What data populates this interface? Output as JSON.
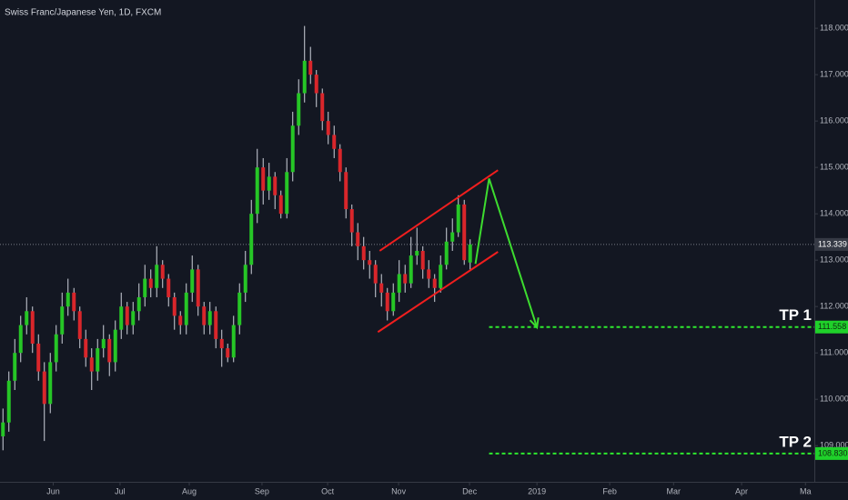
{
  "chart_data": {
    "type": "candlestick",
    "title": "Swiss Franc/Japanese Yen, 1D, FXCM",
    "up_color": "#26c626",
    "down_color": "#d9262b",
    "candles": [
      [
        109.2,
        109.8,
        108.9,
        109.5
      ],
      [
        109.5,
        110.6,
        109.3,
        110.4
      ],
      [
        110.4,
        111.3,
        110.2,
        111.0
      ],
      [
        111.0,
        111.8,
        110.8,
        111.6
      ],
      [
        111.6,
        112.2,
        111.4,
        111.9
      ],
      [
        111.9,
        112.0,
        111.0,
        111.2
      ],
      [
        111.2,
        111.4,
        110.4,
        110.6
      ],
      [
        110.6,
        110.8,
        109.1,
        109.9
      ],
      [
        109.9,
        111.0,
        109.7,
        110.8
      ],
      [
        110.8,
        111.6,
        110.6,
        111.4
      ],
      [
        111.4,
        112.3,
        111.2,
        112.0
      ],
      [
        112.0,
        112.6,
        111.8,
        112.3
      ],
      [
        112.3,
        112.4,
        111.7,
        111.9
      ],
      [
        111.9,
        112.0,
        111.1,
        111.3
      ],
      [
        111.3,
        111.5,
        110.7,
        110.9
      ],
      [
        110.9,
        111.1,
        110.2,
        110.6
      ],
      [
        110.6,
        111.3,
        110.4,
        111.1
      ],
      [
        111.1,
        111.6,
        110.9,
        111.3
      ],
      [
        111.3,
        111.4,
        110.5,
        110.8
      ],
      [
        110.8,
        111.7,
        110.6,
        111.5
      ],
      [
        111.5,
        112.3,
        111.3,
        112.0
      ],
      [
        112.0,
        112.1,
        111.4,
        111.6
      ],
      [
        111.6,
        112.1,
        111.4,
        111.9
      ],
      [
        111.9,
        112.5,
        111.7,
        112.2
      ],
      [
        112.2,
        112.9,
        112.0,
        112.6
      ],
      [
        112.6,
        112.8,
        112.2,
        112.4
      ],
      [
        112.4,
        113.3,
        112.2,
        112.9
      ],
      [
        112.9,
        113.0,
        112.4,
        112.6
      ],
      [
        112.6,
        112.7,
        112.0,
        112.2
      ],
      [
        112.2,
        112.3,
        111.5,
        111.8
      ],
      [
        111.8,
        111.9,
        111.4,
        111.6
      ],
      [
        111.6,
        112.5,
        111.4,
        112.3
      ],
      [
        112.3,
        113.1,
        112.1,
        112.8
      ],
      [
        112.8,
        112.9,
        111.8,
        112.0
      ],
      [
        112.0,
        112.1,
        111.4,
        111.6
      ],
      [
        111.6,
        112.1,
        111.4,
        111.9
      ],
      [
        111.9,
        112.0,
        111.1,
        111.3
      ],
      [
        111.3,
        111.5,
        110.7,
        111.1
      ],
      [
        111.1,
        111.2,
        110.8,
        110.9
      ],
      [
        110.9,
        111.8,
        110.8,
        111.6
      ],
      [
        111.6,
        112.5,
        111.4,
        112.3
      ],
      [
        112.3,
        113.2,
        112.1,
        112.9
      ],
      [
        112.9,
        114.3,
        112.7,
        114.0
      ],
      [
        114.0,
        115.4,
        113.8,
        115.0
      ],
      [
        115.0,
        115.2,
        114.2,
        114.5
      ],
      [
        114.5,
        115.1,
        114.3,
        114.8
      ],
      [
        114.8,
        114.9,
        114.1,
        114.4
      ],
      [
        114.4,
        114.5,
        113.9,
        114.0
      ],
      [
        114.0,
        115.2,
        113.9,
        114.9
      ],
      [
        114.9,
        116.2,
        114.7,
        115.9
      ],
      [
        115.9,
        116.9,
        115.7,
        116.6
      ],
      [
        116.6,
        118.05,
        116.4,
        117.3
      ],
      [
        117.3,
        117.6,
        116.8,
        117.0
      ],
      [
        117.0,
        117.1,
        116.3,
        116.6
      ],
      [
        116.6,
        116.7,
        115.8,
        116.0
      ],
      [
        116.0,
        116.2,
        115.5,
        115.7
      ],
      [
        115.7,
        115.9,
        115.2,
        115.4
      ],
      [
        115.4,
        115.5,
        114.7,
        114.9
      ],
      [
        114.9,
        115.0,
        113.9,
        114.1
      ],
      [
        114.1,
        114.2,
        113.3,
        113.6
      ],
      [
        113.6,
        113.8,
        113.0,
        113.3
      ],
      [
        113.3,
        113.5,
        112.8,
        113.0
      ],
      [
        113.0,
        113.2,
        112.6,
        112.9
      ],
      [
        112.9,
        113.0,
        112.2,
        112.5
      ],
      [
        112.5,
        112.7,
        112.0,
        112.3
      ],
      [
        112.3,
        112.4,
        111.7,
        111.9
      ],
      [
        111.9,
        112.5,
        111.8,
        112.3
      ],
      [
        112.3,
        113.0,
        112.1,
        112.7
      ],
      [
        112.7,
        112.9,
        112.3,
        112.5
      ],
      [
        112.5,
        113.5,
        112.4,
        113.1
      ],
      [
        113.1,
        113.7,
        112.9,
        113.2
      ],
      [
        113.2,
        113.3,
        112.6,
        112.8
      ],
      [
        112.8,
        113.0,
        112.4,
        112.6
      ],
      [
        112.6,
        112.7,
        112.1,
        112.4
      ],
      [
        112.4,
        113.1,
        112.3,
        112.9
      ],
      [
        112.9,
        113.7,
        112.8,
        113.4
      ],
      [
        113.4,
        113.9,
        113.2,
        113.6
      ],
      [
        113.6,
        114.4,
        113.5,
        114.2
      ],
      [
        114.2,
        114.3,
        112.9,
        113.0
      ],
      [
        112.95,
        113.45,
        112.8,
        113.34
      ]
    ],
    "xlim": [
      -0.5,
      137.2
    ],
    "xticks": [
      {
        "value": 8.5,
        "label": "Jun"
      },
      {
        "value": 19.8,
        "label": "Jul"
      },
      {
        "value": 31.5,
        "label": "Aug"
      },
      {
        "value": 43.8,
        "label": "Sep"
      },
      {
        "value": 54.9,
        "label": "Oct"
      },
      {
        "value": 66.9,
        "label": "Nov"
      },
      {
        "value": 78.9,
        "label": "Dec"
      },
      {
        "value": 90.3,
        "label": "2019"
      },
      {
        "value": 102.6,
        "label": "Feb"
      },
      {
        "value": 113.4,
        "label": "Mar"
      },
      {
        "value": 124.9,
        "label": "Apr"
      },
      {
        "value": 135.7,
        "label": "Ma"
      }
    ],
    "ylim": [
      108.22,
      118.61
    ],
    "yticks": [
      {
        "value": 109,
        "label": "109.000"
      },
      {
        "value": 110,
        "label": "110.000"
      },
      {
        "value": 111,
        "label": "111.000"
      },
      {
        "value": 112,
        "label": "112.000"
      },
      {
        "value": 113,
        "label": "113.000"
      },
      {
        "value": 114,
        "label": "114.000"
      },
      {
        "value": 115,
        "label": "115.000"
      },
      {
        "value": 116,
        "label": "116.000"
      },
      {
        "value": 117,
        "label": "117.000"
      },
      {
        "value": 118,
        "label": "118.000"
      }
    ],
    "last_price": {
      "value": 113.339,
      "label": "113.339"
    },
    "channel_color": "#f01e1e",
    "channel": [
      [
        [
          63.7,
          113.2
        ],
        [
          83.7,
          114.94
        ]
      ],
      [
        [
          63.4,
          111.45
        ],
        [
          83.7,
          113.18
        ]
      ]
    ],
    "arrow_color": "#3ddc2f",
    "arrow": [
      [
        79.9,
        112.92
      ],
      [
        82.2,
        114.76
      ],
      [
        90.3,
        111.55
      ]
    ],
    "level_color": "#2ee82e",
    "levels": [
      {
        "text": "TP 1",
        "value": 111.558,
        "label": "111.558"
      },
      {
        "text": "TP 2",
        "value": 108.83,
        "label": "108.830"
      }
    ]
  }
}
